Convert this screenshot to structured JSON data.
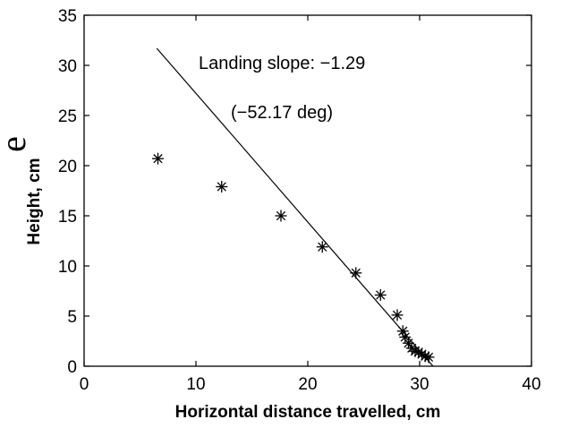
{
  "panel_letter": "e",
  "chart_data": {
    "type": "scatter",
    "xlabel": "Horizontal distance travelled, cm",
    "ylabel": "Height, cm",
    "xlim": [
      0,
      40
    ],
    "ylim": [
      0,
      35
    ],
    "x_ticks": [
      0,
      10,
      20,
      30,
      40
    ],
    "y_ticks": [
      0,
      5,
      10,
      15,
      20,
      25,
      30,
      35
    ],
    "x_tick_labels": [
      "0",
      "10",
      "20",
      "30",
      "40"
    ],
    "y_tick_labels": [
      "0",
      "5",
      "10",
      "15",
      "20",
      "25",
      "30",
      "35"
    ],
    "grid": false,
    "marker": "asterisk",
    "points": [
      {
        "x": 6.6,
        "y": 20.7
      },
      {
        "x": 12.3,
        "y": 17.9
      },
      {
        "x": 17.6,
        "y": 15.0
      },
      {
        "x": 21.3,
        "y": 11.9
      },
      {
        "x": 24.3,
        "y": 9.3
      },
      {
        "x": 26.5,
        "y": 7.1
      },
      {
        "x": 28.0,
        "y": 5.1
      },
      {
        "x": 28.5,
        "y": 3.5
      },
      {
        "x": 28.7,
        "y": 2.9
      },
      {
        "x": 29.0,
        "y": 2.3
      },
      {
        "x": 29.3,
        "y": 1.8
      },
      {
        "x": 29.6,
        "y": 1.5
      },
      {
        "x": 29.9,
        "y": 1.4
      },
      {
        "x": 30.2,
        "y": 1.2
      },
      {
        "x": 30.5,
        "y": 1.0
      },
      {
        "x": 30.8,
        "y": 0.9
      }
    ],
    "fit_line": {
      "x": [
        6.5,
        31.2
      ],
      "y": [
        31.7,
        0.0
      ]
    },
    "annotations": [
      "Landing slope: −1.29",
      "(−52.17 deg)"
    ]
  }
}
